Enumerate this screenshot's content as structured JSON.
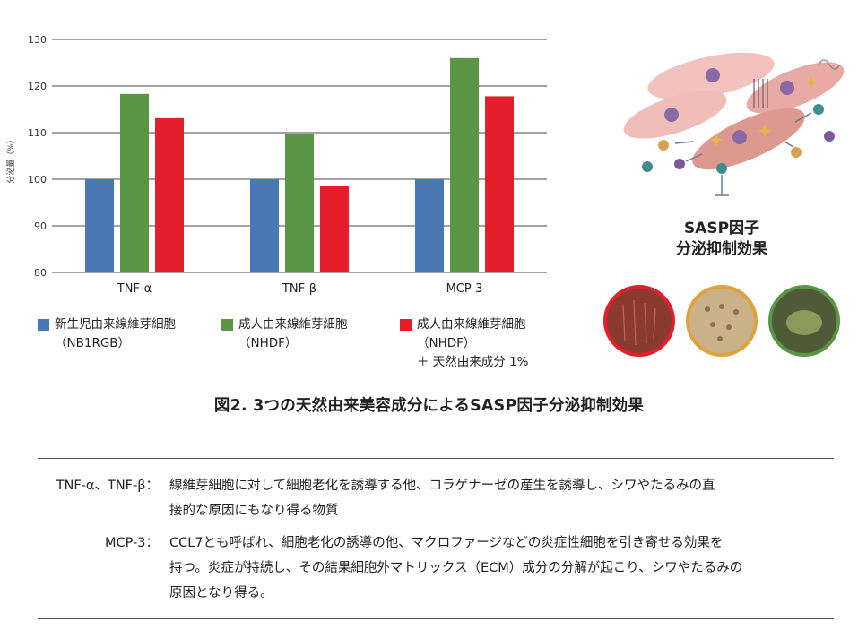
{
  "chart_data": {
    "type": "bar",
    "categories": [
      "TNF-α",
      "TNF-β",
      "MCP-3"
    ],
    "series": [
      {
        "name": "新生児由来線維芽細胞 (NB1RGB)",
        "values": [
          100,
          100,
          100
        ],
        "color": "#4a78b5"
      },
      {
        "name": "成人由来線維芽細胞 (NHDF)",
        "values": [
          118.3,
          109.7,
          126.0
        ],
        "color": "#5a9645"
      },
      {
        "name": "成人由来線維芽細胞 (NHDF) ＋ 天然由来成分 1%",
        "values": [
          113.1,
          98.5,
          117.8
        ],
        "color": "#e41e2b"
      }
    ],
    "ylabel": "分泌量（%）",
    "ylim": [
      80,
      130
    ],
    "yticks": [
      80,
      90,
      100,
      110,
      120,
      130
    ],
    "grid": true,
    "legend_position": "bottom"
  },
  "legend": [
    {
      "line1": "新生児由来線維芽細胞",
      "line2": "（NB1RGB）",
      "line3": "",
      "color": "#4a78b5"
    },
    {
      "line1": "成人由来線維芽細胞",
      "line2": "（NHDF）",
      "line3": "",
      "color": "#5a9645"
    },
    {
      "line1": "成人由来線維芽細胞",
      "line2": "（NHDF）",
      "line3": "＋ 天然由来成分 1%",
      "color": "#e41e2b"
    }
  ],
  "illustration": {
    "label_line1": "SASP因子",
    "label_line2": "分泌抑制効果",
    "icons": [
      "senescent-cells-illustration",
      "red-plant-icon",
      "seeds-icon",
      "herb-powder-icon"
    ]
  },
  "caption": "図2. 3つの天然由来美容成分によるSASP因子分泌抑制効果",
  "definitions": [
    {
      "term": "TNF-α、TNF-β：",
      "line1": "線維芽細胞に対して細胞老化を誘導する他、コラゲナーゼの産生を誘導し、シワやたるみの直",
      "line2": "接的な原因にもなり得る物質",
      "line3": ""
    },
    {
      "term": "MCP-3：",
      "line1": "CCL7とも呼ばれ、細胞老化の誘導の他、マクロファージなどの炎症性細胞を引き寄せる効果を",
      "line2": "持つ。炎症が持続し、その結果細胞外マトリックス（ECM）成分の分解が起こり、シワやたるみの",
      "line3": "原因となり得る。"
    }
  ]
}
